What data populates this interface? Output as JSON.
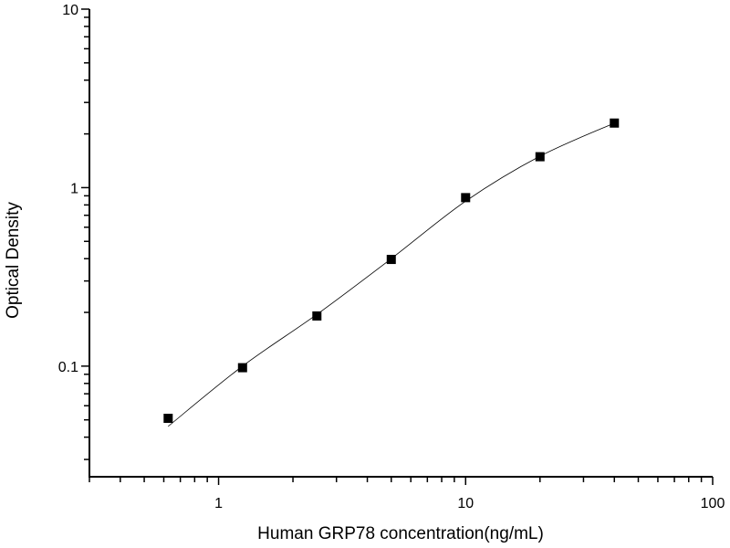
{
  "chart_data": {
    "type": "scatter",
    "title": "",
    "xlabel": "Human GRP78 concentration(ng/mL)",
    "ylabel": "Optical Density",
    "x_scale": "log",
    "y_scale": "log",
    "xlim": [
      0.3,
      100
    ],
    "ylim": [
      0.024,
      10
    ],
    "x_ticks": [
      {
        "value": 1,
        "label": "1"
      },
      {
        "value": 10,
        "label": "10"
      },
      {
        "value": 100,
        "label": "100"
      }
    ],
    "y_ticks": [
      {
        "value": 0.1,
        "label": "0.1"
      },
      {
        "value": 1,
        "label": "1"
      },
      {
        "value": 10,
        "label": "10"
      }
    ],
    "grid": false,
    "marker_color": "#000000",
    "series": [
      {
        "type": "scatter",
        "marker": "square",
        "x": [
          0.625,
          1.25,
          2.5,
          5,
          10,
          20,
          40
        ],
        "y": [
          0.051,
          0.098,
          0.191,
          0.396,
          0.879,
          1.49,
          2.3
        ]
      },
      {
        "type": "line",
        "x": [
          0.625,
          1.25,
          2.5,
          5,
          10,
          20,
          40
        ],
        "y": [
          0.046,
          0.1,
          0.195,
          0.4,
          0.84,
          1.5,
          2.3
        ]
      }
    ]
  }
}
